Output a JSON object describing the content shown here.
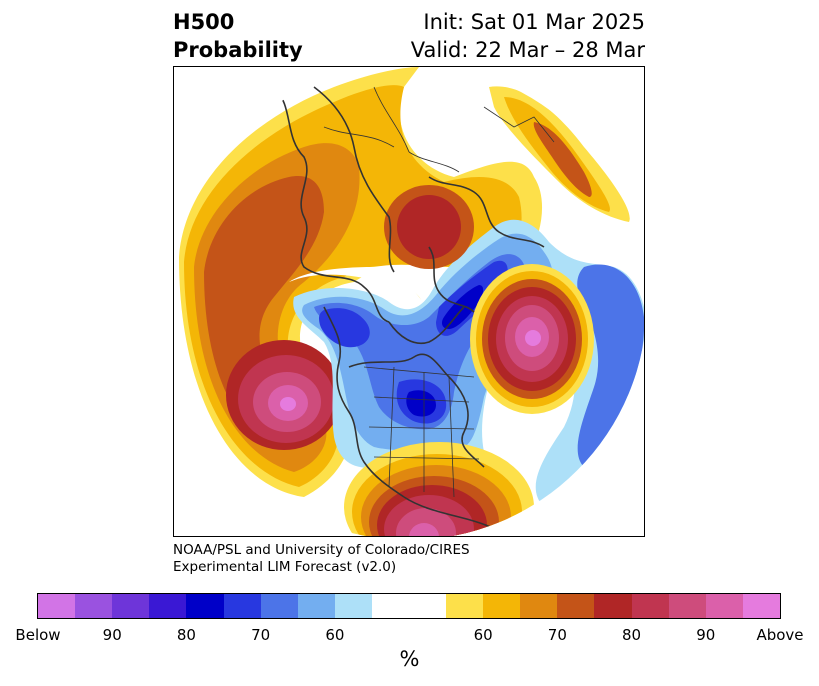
{
  "header": {
    "variable": "H500",
    "product": "Probability",
    "init": "Init: Sat 01 Mar 2025",
    "valid": "Valid: 22 Mar – 28 Mar"
  },
  "credit": {
    "line1": "NOAA/PSL and University of Colorado/CIRES",
    "line2": "Experimental LIM Forecast (v2.0)"
  },
  "colorbar": {
    "colors": [
      "#d274e6",
      "#9a52e0",
      "#6e35d9",
      "#3a18d4",
      "#0000c8",
      "#2838e0",
      "#4c74e8",
      "#73aef0",
      "#ade0f8",
      "#ffffff",
      "#fde04a",
      "#f4b606",
      "#e08810",
      "#c45418",
      "#b02626",
      "#c03550",
      "#ce4c7c",
      "#db60aa",
      "#e57bde"
    ],
    "tick_labels": [
      "Below",
      "90",
      "80",
      "70",
      "60",
      "60",
      "70",
      "80",
      "90",
      "Above"
    ],
    "unit": "%"
  },
  "map": {
    "projection": "north-polar-stereographic",
    "features": [
      "coastlines",
      "country-borders",
      "us-state-borders"
    ],
    "anomaly_centers": [
      {
        "region": "North Pacific",
        "category": "above",
        "peak_class": "90"
      },
      {
        "region": "Northeast Atlantic",
        "category": "above",
        "peak_class": "90"
      },
      {
        "region": "Southwestern United States",
        "category": "above",
        "peak_class": "90"
      },
      {
        "region": "Eastern Siberia",
        "category": "above",
        "peak_class": "80"
      },
      {
        "region": "Northeastern Canada / Hudson Bay",
        "category": "below",
        "peak_class": "80"
      },
      {
        "region": "Greenland / Baffin region",
        "category": "below",
        "peak_class": "80"
      }
    ]
  }
}
